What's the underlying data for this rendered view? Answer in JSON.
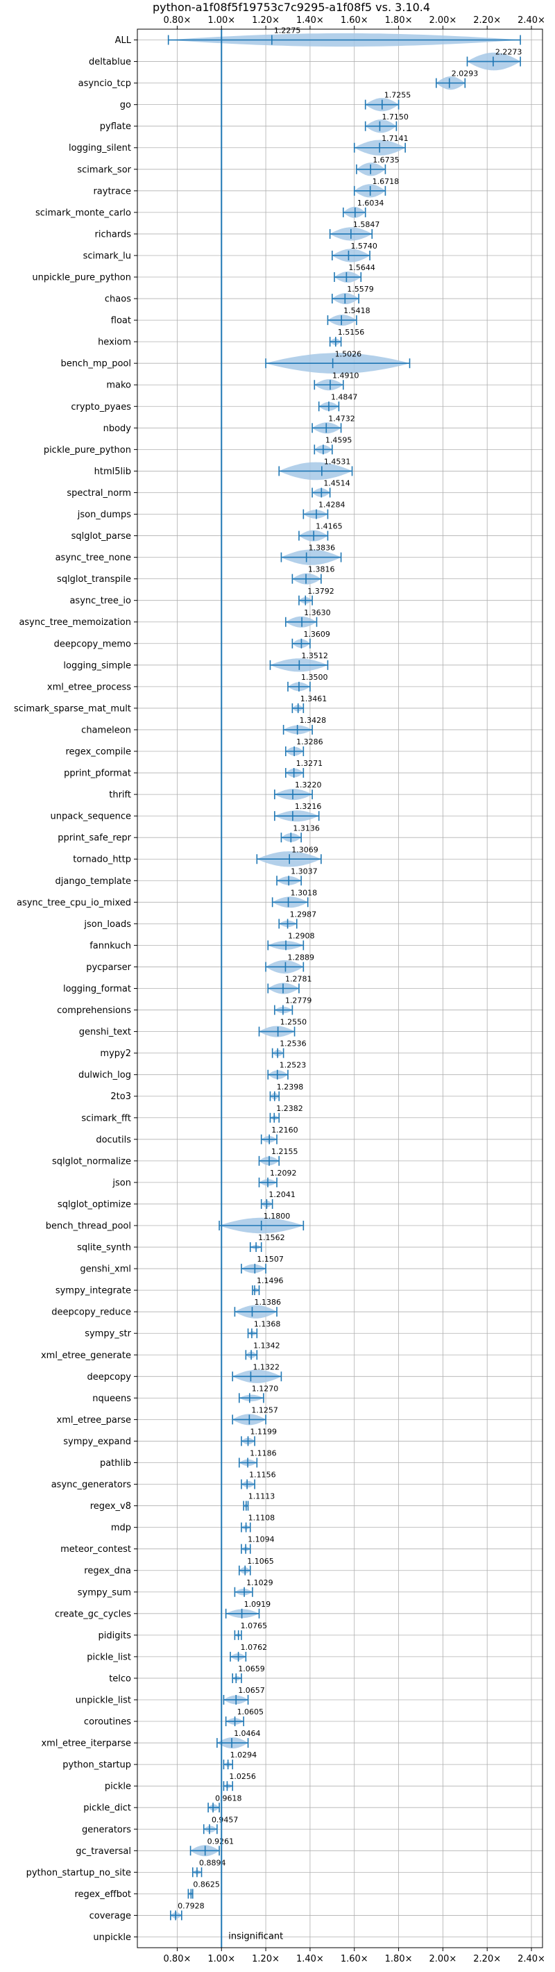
{
  "chart_data": {
    "type": "violin",
    "title": "python-a1f08f5f19753c7c9295-a1f08f5 vs. 3.10.4",
    "xlabel": "",
    "ylabel": "",
    "xlim": [
      0.62,
      2.45
    ],
    "x_ticks": [
      0.8,
      1.0,
      1.2,
      1.4,
      1.6,
      1.8,
      2.0,
      2.2,
      2.4
    ],
    "x_tick_labels": [
      "0.80×",
      "1.00×",
      "1.20×",
      "1.40×",
      "1.60×",
      "1.80×",
      "2.00×",
      "2.20×",
      "2.40×"
    ],
    "reference_line": 1.0,
    "grid": true,
    "annotation": "insignificant",
    "colors": {
      "violin": "#a6c8e6",
      "line": "#1f77b4"
    },
    "benchmarks": [
      {
        "name": "ALL",
        "value": 1.2275,
        "label": "1.2275",
        "min": 0.76,
        "max": 2.35,
        "spread": 0.06
      },
      {
        "name": "deltablue",
        "value": 2.2273,
        "label": "2.2273",
        "min": 2.11,
        "max": 2.35,
        "spread": 0.08
      },
      {
        "name": "asyncio_tcp",
        "value": 2.0293,
        "label": "2.0293",
        "min": 1.97,
        "max": 2.1,
        "spread": 0.06
      },
      {
        "name": "go",
        "value": 1.7255,
        "label": "1.7255",
        "min": 1.65,
        "max": 1.8,
        "spread": 0.06
      },
      {
        "name": "pyflate",
        "value": 1.715,
        "label": "1.7150",
        "min": 1.65,
        "max": 1.79,
        "spread": 0.06
      },
      {
        "name": "logging_silent",
        "value": 1.7141,
        "label": "1.7141",
        "min": 1.6,
        "max": 1.83,
        "spread": 0.07
      },
      {
        "name": "scimark_sor",
        "value": 1.6735,
        "label": "1.6735",
        "min": 1.61,
        "max": 1.74,
        "spread": 0.06
      },
      {
        "name": "raytrace",
        "value": 1.6718,
        "label": "1.6718",
        "min": 1.6,
        "max": 1.74,
        "spread": 0.06
      },
      {
        "name": "scimark_monte_carlo",
        "value": 1.6034,
        "label": "1.6034",
        "min": 1.55,
        "max": 1.65,
        "spread": 0.05
      },
      {
        "name": "richards",
        "value": 1.5847,
        "label": "1.5847",
        "min": 1.49,
        "max": 1.68,
        "spread": 0.06
      },
      {
        "name": "scimark_lu",
        "value": 1.574,
        "label": "1.5740",
        "min": 1.5,
        "max": 1.67,
        "spread": 0.06
      },
      {
        "name": "unpickle_pure_python",
        "value": 1.5644,
        "label": "1.5644",
        "min": 1.51,
        "max": 1.63,
        "spread": 0.05
      },
      {
        "name": "chaos",
        "value": 1.5579,
        "label": "1.5579",
        "min": 1.5,
        "max": 1.62,
        "spread": 0.05
      },
      {
        "name": "float",
        "value": 1.5418,
        "label": "1.5418",
        "min": 1.48,
        "max": 1.61,
        "spread": 0.05
      },
      {
        "name": "hexiom",
        "value": 1.5156,
        "label": "1.5156",
        "min": 1.49,
        "max": 1.54,
        "spread": 0.03
      },
      {
        "name": "bench_mp_pool",
        "value": 1.5026,
        "label": "1.5026",
        "min": 1.2,
        "max": 1.85,
        "spread": 0.1
      },
      {
        "name": "mako",
        "value": 1.491,
        "label": "1.4910",
        "min": 1.42,
        "max": 1.55,
        "spread": 0.05
      },
      {
        "name": "crypto_pyaes",
        "value": 1.4847,
        "label": "1.4847",
        "min": 1.44,
        "max": 1.53,
        "spread": 0.04
      },
      {
        "name": "nbody",
        "value": 1.4732,
        "label": "1.4732",
        "min": 1.41,
        "max": 1.54,
        "spread": 0.05
      },
      {
        "name": "pickle_pure_python",
        "value": 1.4595,
        "label": "1.4595",
        "min": 1.42,
        "max": 1.5,
        "spread": 0.04
      },
      {
        "name": "html5lib",
        "value": 1.4531,
        "label": "1.4531",
        "min": 1.26,
        "max": 1.59,
        "spread": 0.08
      },
      {
        "name": "spectral_norm",
        "value": 1.4514,
        "label": "1.4514",
        "min": 1.41,
        "max": 1.49,
        "spread": 0.04
      },
      {
        "name": "json_dumps",
        "value": 1.4284,
        "label": "1.4284",
        "min": 1.37,
        "max": 1.48,
        "spread": 0.04
      },
      {
        "name": "sqlglot_parse",
        "value": 1.4165,
        "label": "1.4165",
        "min": 1.35,
        "max": 1.48,
        "spread": 0.05
      },
      {
        "name": "async_tree_none",
        "value": 1.3836,
        "label": "1.3836",
        "min": 1.27,
        "max": 1.54,
        "spread": 0.07
      },
      {
        "name": "sqlglot_transpile",
        "value": 1.3816,
        "label": "1.3816",
        "min": 1.32,
        "max": 1.45,
        "spread": 0.05
      },
      {
        "name": "async_tree_io",
        "value": 1.3792,
        "label": "1.3792",
        "min": 1.35,
        "max": 1.41,
        "spread": 0.03
      },
      {
        "name": "async_tree_memoization",
        "value": 1.363,
        "label": "1.3630",
        "min": 1.29,
        "max": 1.43,
        "spread": 0.05
      },
      {
        "name": "deepcopy_memo",
        "value": 1.3609,
        "label": "1.3609",
        "min": 1.32,
        "max": 1.4,
        "spread": 0.04
      },
      {
        "name": "logging_simple",
        "value": 1.3512,
        "label": "1.3512",
        "min": 1.22,
        "max": 1.48,
        "spread": 0.06
      },
      {
        "name": "xml_etree_process",
        "value": 1.35,
        "label": "1.3500",
        "min": 1.3,
        "max": 1.4,
        "spread": 0.04
      },
      {
        "name": "scimark_sparse_mat_mult",
        "value": 1.3461,
        "label": "1.3461",
        "min": 1.32,
        "max": 1.37,
        "spread": 0.03
      },
      {
        "name": "chameleon",
        "value": 1.3428,
        "label": "1.3428",
        "min": 1.28,
        "max": 1.41,
        "spread": 0.04
      },
      {
        "name": "regex_compile",
        "value": 1.3286,
        "label": "1.3286",
        "min": 1.29,
        "max": 1.37,
        "spread": 0.04
      },
      {
        "name": "pprint_pformat",
        "value": 1.3271,
        "label": "1.3271",
        "min": 1.29,
        "max": 1.37,
        "spread": 0.04
      },
      {
        "name": "thrift",
        "value": 1.322,
        "label": "1.3220",
        "min": 1.24,
        "max": 1.41,
        "spread": 0.05
      },
      {
        "name": "unpack_sequence",
        "value": 1.3216,
        "label": "1.3216",
        "min": 1.24,
        "max": 1.44,
        "spread": 0.05
      },
      {
        "name": "pprint_safe_repr",
        "value": 1.3136,
        "label": "1.3136",
        "min": 1.27,
        "max": 1.36,
        "spread": 0.04
      },
      {
        "name": "tornado_http",
        "value": 1.3069,
        "label": "1.3069",
        "min": 1.16,
        "max": 1.45,
        "spread": 0.07
      },
      {
        "name": "django_template",
        "value": 1.3037,
        "label": "1.3037",
        "min": 1.25,
        "max": 1.36,
        "spread": 0.04
      },
      {
        "name": "async_tree_cpu_io_mixed",
        "value": 1.3018,
        "label": "1.3018",
        "min": 1.23,
        "max": 1.39,
        "spread": 0.05
      },
      {
        "name": "json_loads",
        "value": 1.2987,
        "label": "1.2987",
        "min": 1.26,
        "max": 1.34,
        "spread": 0.03
      },
      {
        "name": "fannkuch",
        "value": 1.2908,
        "label": "1.2908",
        "min": 1.21,
        "max": 1.37,
        "spread": 0.04
      },
      {
        "name": "pycparser",
        "value": 1.2889,
        "label": "1.2889",
        "min": 1.2,
        "max": 1.37,
        "spread": 0.06
      },
      {
        "name": "logging_format",
        "value": 1.2781,
        "label": "1.2781",
        "min": 1.21,
        "max": 1.35,
        "spread": 0.05
      },
      {
        "name": "comprehensions",
        "value": 1.2779,
        "label": "1.2779",
        "min": 1.24,
        "max": 1.32,
        "spread": 0.03
      },
      {
        "name": "genshi_text",
        "value": 1.255,
        "label": "1.2550",
        "min": 1.17,
        "max": 1.33,
        "spread": 0.05
      },
      {
        "name": "mypy2",
        "value": 1.2536,
        "label": "1.2536",
        "min": 1.23,
        "max": 1.28,
        "spread": 0.03
      },
      {
        "name": "dulwich_log",
        "value": 1.2523,
        "label": "1.2523",
        "min": 1.21,
        "max": 1.3,
        "spread": 0.04
      },
      {
        "name": "2to3",
        "value": 1.2398,
        "label": "1.2398",
        "min": 1.22,
        "max": 1.26,
        "spread": 0.03
      },
      {
        "name": "scimark_fft",
        "value": 1.2382,
        "label": "1.2382",
        "min": 1.22,
        "max": 1.26,
        "spread": 0.02
      },
      {
        "name": "docutils",
        "value": 1.216,
        "label": "1.2160",
        "min": 1.18,
        "max": 1.25,
        "spread": 0.03
      },
      {
        "name": "sqlglot_normalize",
        "value": 1.2155,
        "label": "1.2155",
        "min": 1.17,
        "max": 1.26,
        "spread": 0.04
      },
      {
        "name": "json",
        "value": 1.2092,
        "label": "1.2092",
        "min": 1.17,
        "max": 1.25,
        "spread": 0.03
      },
      {
        "name": "sqlglot_optimize",
        "value": 1.2041,
        "label": "1.2041",
        "min": 1.18,
        "max": 1.23,
        "spread": 0.03
      },
      {
        "name": "bench_thread_pool",
        "value": 1.18,
        "label": "1.1800",
        "min": 0.99,
        "max": 1.37,
        "spread": 0.07
      },
      {
        "name": "sqlite_synth",
        "value": 1.1562,
        "label": "1.1562",
        "min": 1.13,
        "max": 1.18,
        "spread": 0.02
      },
      {
        "name": "genshi_xml",
        "value": 1.1507,
        "label": "1.1507",
        "min": 1.09,
        "max": 1.2,
        "spread": 0.04
      },
      {
        "name": "sympy_integrate",
        "value": 1.1496,
        "label": "1.1496",
        "min": 1.14,
        "max": 1.17,
        "spread": 0.02
      },
      {
        "name": "deepcopy_reduce",
        "value": 1.1386,
        "label": "1.1386",
        "min": 1.06,
        "max": 1.25,
        "spread": 0.06
      },
      {
        "name": "sympy_str",
        "value": 1.1368,
        "label": "1.1368",
        "min": 1.12,
        "max": 1.16,
        "spread": 0.02
      },
      {
        "name": "xml_etree_generate",
        "value": 1.1342,
        "label": "1.1342",
        "min": 1.11,
        "max": 1.16,
        "spread": 0.03
      },
      {
        "name": "deepcopy",
        "value": 1.1322,
        "label": "1.1322",
        "min": 1.05,
        "max": 1.27,
        "spread": 0.06
      },
      {
        "name": "nqueens",
        "value": 1.127,
        "label": "1.1270",
        "min": 1.08,
        "max": 1.19,
        "spread": 0.03
      },
      {
        "name": "xml_etree_parse",
        "value": 1.1257,
        "label": "1.1257",
        "min": 1.05,
        "max": 1.2,
        "spread": 0.05
      },
      {
        "name": "sympy_expand",
        "value": 1.1199,
        "label": "1.1199",
        "min": 1.09,
        "max": 1.15,
        "spread": 0.03
      },
      {
        "name": "pathlib",
        "value": 1.1186,
        "label": "1.1186",
        "min": 1.08,
        "max": 1.16,
        "spread": 0.03
      },
      {
        "name": "async_generators",
        "value": 1.1156,
        "label": "1.1156",
        "min": 1.09,
        "max": 1.15,
        "spread": 0.03
      },
      {
        "name": "regex_v8",
        "value": 1.1113,
        "label": "1.1113",
        "min": 1.1,
        "max": 1.12,
        "spread": 0.015
      },
      {
        "name": "mdp",
        "value": 1.1108,
        "label": "1.1108",
        "min": 1.09,
        "max": 1.13,
        "spread": 0.02
      },
      {
        "name": "meteor_contest",
        "value": 1.1094,
        "label": "1.1094",
        "min": 1.09,
        "max": 1.13,
        "spread": 0.02
      },
      {
        "name": "regex_dna",
        "value": 1.1065,
        "label": "1.1065",
        "min": 1.08,
        "max": 1.13,
        "spread": 0.03
      },
      {
        "name": "sympy_sum",
        "value": 1.1029,
        "label": "1.1029",
        "min": 1.06,
        "max": 1.14,
        "spread": 0.03
      },
      {
        "name": "create_gc_cycles",
        "value": 1.0919,
        "label": "1.0919",
        "min": 1.02,
        "max": 1.17,
        "spread": 0.04
      },
      {
        "name": "pidigits",
        "value": 1.0765,
        "label": "1.0765",
        "min": 1.06,
        "max": 1.09,
        "spread": 0.015
      },
      {
        "name": "pickle_list",
        "value": 1.0762,
        "label": "1.0762",
        "min": 1.04,
        "max": 1.11,
        "spread": 0.03
      },
      {
        "name": "telco",
        "value": 1.0659,
        "label": "1.0659",
        "min": 1.05,
        "max": 1.09,
        "spread": 0.02
      },
      {
        "name": "unpickle_list",
        "value": 1.0657,
        "label": "1.0657",
        "min": 1.01,
        "max": 1.12,
        "spread": 0.04
      },
      {
        "name": "coroutines",
        "value": 1.0605,
        "label": "1.0605",
        "min": 1.02,
        "max": 1.1,
        "spread": 0.03
      },
      {
        "name": "xml_etree_iterparse",
        "value": 1.0464,
        "label": "1.0464",
        "min": 0.98,
        "max": 1.12,
        "spread": 0.05
      },
      {
        "name": "python_startup",
        "value": 1.0294,
        "label": "1.0294",
        "min": 1.01,
        "max": 1.05,
        "spread": 0.02
      },
      {
        "name": "pickle",
        "value": 1.0256,
        "label": "1.0256",
        "min": 1.01,
        "max": 1.05,
        "spread": 0.02
      },
      {
        "name": "pickle_dict",
        "value": 0.9618,
        "label": "0.9618",
        "min": 0.94,
        "max": 0.99,
        "spread": 0.03
      },
      {
        "name": "generators",
        "value": 0.9457,
        "label": "0.9457",
        "min": 0.92,
        "max": 0.98,
        "spread": 0.03
      },
      {
        "name": "gc_traversal",
        "value": 0.9261,
        "label": "0.9261",
        "min": 0.86,
        "max": 0.99,
        "spread": 0.05
      },
      {
        "name": "python_startup_no_site",
        "value": 0.8894,
        "label": "0.8894",
        "min": 0.87,
        "max": 0.91,
        "spread": 0.02
      },
      {
        "name": "regex_effbot",
        "value": 0.8625,
        "label": "0.8625",
        "min": 0.85,
        "max": 0.87,
        "spread": 0.015
      },
      {
        "name": "coverage",
        "value": 0.7928,
        "label": "0.7928",
        "min": 0.77,
        "max": 0.82,
        "spread": 0.03
      },
      {
        "name": "unpickle",
        "value": null,
        "label": "",
        "min": null,
        "max": null,
        "spread": 0
      }
    ]
  }
}
